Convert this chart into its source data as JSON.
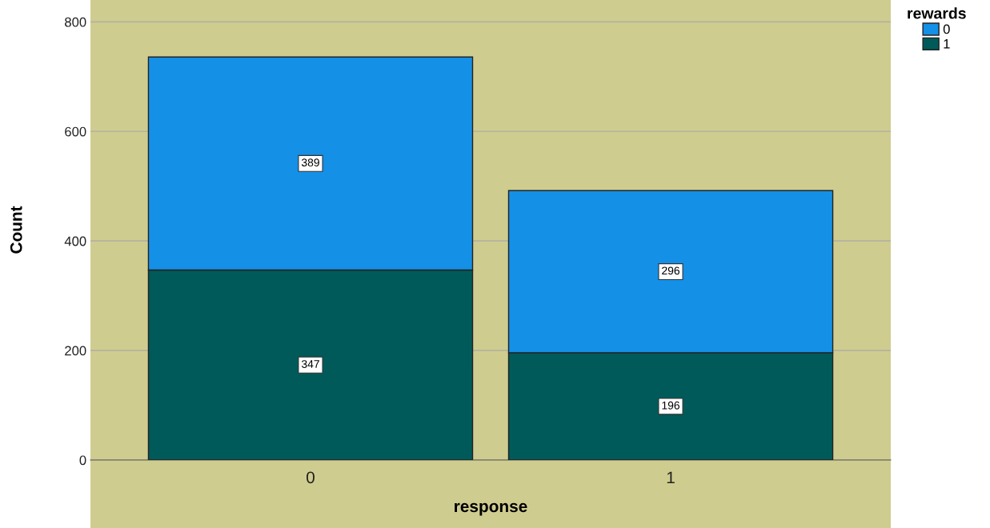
{
  "chart_data": {
    "type": "bar",
    "stacked": true,
    "categories": [
      "0",
      "1"
    ],
    "xlabel": "response",
    "ylabel": "Count",
    "legend_title": "rewards",
    "legend": "top right",
    "series": [
      {
        "name": "1",
        "color": "#005a5a",
        "values": [
          347,
          196
        ]
      },
      {
        "name": "0",
        "color": "#1490e6",
        "values": [
          389,
          296
        ]
      }
    ],
    "ylim": [
      0,
      840
    ],
    "yticks": [
      0,
      200,
      400,
      600,
      800
    ],
    "grid": "y",
    "data_labels": true
  }
}
